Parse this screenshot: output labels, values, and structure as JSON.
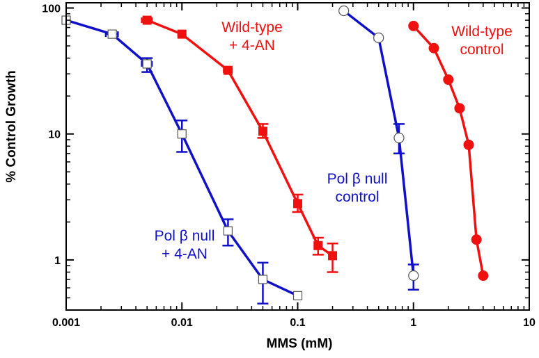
{
  "chart_data": {
    "type": "line",
    "title": "",
    "xlabel": "MMS (mM)",
    "ylabel": "% Control Growth",
    "xscale": "log",
    "yscale": "log",
    "xlim": [
      0.001,
      10
    ],
    "ylim": [
      0.4,
      110
    ],
    "x_ticks": [
      {
        "value": 0.001,
        "label": "0.001"
      },
      {
        "value": 0.01,
        "label": "0.01"
      },
      {
        "value": 0.1,
        "label": "0.1"
      },
      {
        "value": 1,
        "label": "1"
      },
      {
        "value": 10,
        "label": "10"
      }
    ],
    "y_ticks": [
      {
        "value": 1,
        "label": "1"
      },
      {
        "value": 10,
        "label": "10"
      },
      {
        "value": 100,
        "label": "100"
      }
    ],
    "legend": "none",
    "series": [
      {
        "name": "Pol β null + 4-AN",
        "color": "#1010c8",
        "marker": "open-square",
        "points": [
          {
            "x": 0.001,
            "y": 80,
            "ylo": 80,
            "yhi": 80,
            "xlo": 0.001,
            "xhi": 0.001
          },
          {
            "x": 0.0025,
            "y": 62,
            "ylo": 62,
            "yhi": 62,
            "xlo": 0.0022,
            "xhi": 0.0028
          },
          {
            "x": 0.005,
            "y": 36,
            "ylo": 31,
            "yhi": 40,
            "xlo": 0.0045,
            "xhi": 0.0055
          },
          {
            "x": 0.01,
            "y": 10,
            "ylo": 7.2,
            "yhi": 12.8,
            "xlo": 0.01,
            "xhi": 0.01
          },
          {
            "x": 0.025,
            "y": 1.7,
            "ylo": 1.3,
            "yhi": 2.1,
            "xlo": 0.025,
            "xhi": 0.025
          },
          {
            "x": 0.05,
            "y": 0.7,
            "ylo": 0.45,
            "yhi": 0.95,
            "xlo": 0.05,
            "xhi": 0.05
          },
          {
            "x": 0.1,
            "y": 0.52,
            "ylo": 0.52,
            "yhi": 0.52,
            "xlo": 0.093,
            "xhi": 0.107
          }
        ]
      },
      {
        "name": "Wild-type + 4-AN",
        "color": "#f01010",
        "marker": "filled-square",
        "points": [
          {
            "x": 0.005,
            "y": 80,
            "ylo": 80,
            "yhi": 80,
            "xlo": 0.0045,
            "xhi": 0.0055
          },
          {
            "x": 0.01,
            "y": 62,
            "ylo": 62,
            "yhi": 62,
            "xlo": 0.0093,
            "xhi": 0.0107
          },
          {
            "x": 0.025,
            "y": 32,
            "ylo": 32,
            "yhi": 32,
            "xlo": 0.023,
            "xhi": 0.027
          },
          {
            "x": 0.05,
            "y": 10.5,
            "ylo": 9.3,
            "yhi": 12,
            "xlo": 0.05,
            "xhi": 0.05
          },
          {
            "x": 0.1,
            "y": 2.8,
            "ylo": 2.4,
            "yhi": 3.3,
            "xlo": 0.1,
            "xhi": 0.1
          },
          {
            "x": 0.15,
            "y": 1.3,
            "ylo": 1.1,
            "yhi": 1.5,
            "xlo": 0.15,
            "xhi": 0.15
          },
          {
            "x": 0.2,
            "y": 1.08,
            "ylo": 0.8,
            "yhi": 1.35,
            "xlo": 0.2,
            "xhi": 0.2
          }
        ]
      },
      {
        "name": "Pol β null control",
        "color": "#1010c8",
        "marker": "open-circle",
        "points": [
          {
            "x": 0.25,
            "y": 95,
            "ylo": 95,
            "yhi": 95,
            "xlo": 0.25,
            "xhi": 0.25
          },
          {
            "x": 0.5,
            "y": 58,
            "ylo": 58,
            "yhi": 58,
            "xlo": 0.46,
            "xhi": 0.54
          },
          {
            "x": 0.75,
            "y": 9.3,
            "ylo": 7,
            "yhi": 12,
            "xlo": 0.75,
            "xhi": 0.75
          },
          {
            "x": 1.0,
            "y": 0.75,
            "ylo": 0.58,
            "yhi": 0.92,
            "xlo": 1.0,
            "xhi": 1.0
          }
        ]
      },
      {
        "name": "Wild-type control",
        "color": "#f01010",
        "marker": "filled-circle",
        "points": [
          {
            "x": 1.0,
            "y": 72,
            "ylo": 72,
            "yhi": 72,
            "xlo": 0.94,
            "xhi": 1.06
          },
          {
            "x": 1.5,
            "y": 48,
            "ylo": 48,
            "yhi": 48,
            "xlo": 1.42,
            "xhi": 1.58
          },
          {
            "x": 2.0,
            "y": 27,
            "ylo": 27,
            "yhi": 27,
            "xlo": 1.9,
            "xhi": 2.1
          },
          {
            "x": 2.5,
            "y": 16,
            "ylo": 16,
            "yhi": 16,
            "xlo": 2.38,
            "xhi": 2.62
          },
          {
            "x": 3.0,
            "y": 8.2,
            "ylo": 8.2,
            "yhi": 8.2,
            "xlo": 2.85,
            "xhi": 3.15
          },
          {
            "x": 3.5,
            "y": 1.45,
            "ylo": 1.45,
            "yhi": 1.45,
            "xlo": 3.5,
            "xhi": 3.5
          },
          {
            "x": 4.0,
            "y": 0.75,
            "ylo": 0.75,
            "yhi": 0.75,
            "xlo": 3.75,
            "xhi": 4.25
          }
        ]
      }
    ],
    "annotations": [
      {
        "id": "wt-4an",
        "color": "#f01010",
        "lines": [
          "Wild-type",
          "+ 4-AN"
        ]
      },
      {
        "id": "wt-control",
        "color": "#f01010",
        "lines": [
          "Wild-type",
          "control"
        ]
      },
      {
        "id": "polb-control",
        "color": "#1010c8",
        "lines": [
          "Pol β null",
          "control"
        ]
      },
      {
        "id": "polb-4an",
        "color": "#1010c8",
        "lines": [
          "Pol β null",
          "+ 4-AN"
        ]
      }
    ]
  }
}
